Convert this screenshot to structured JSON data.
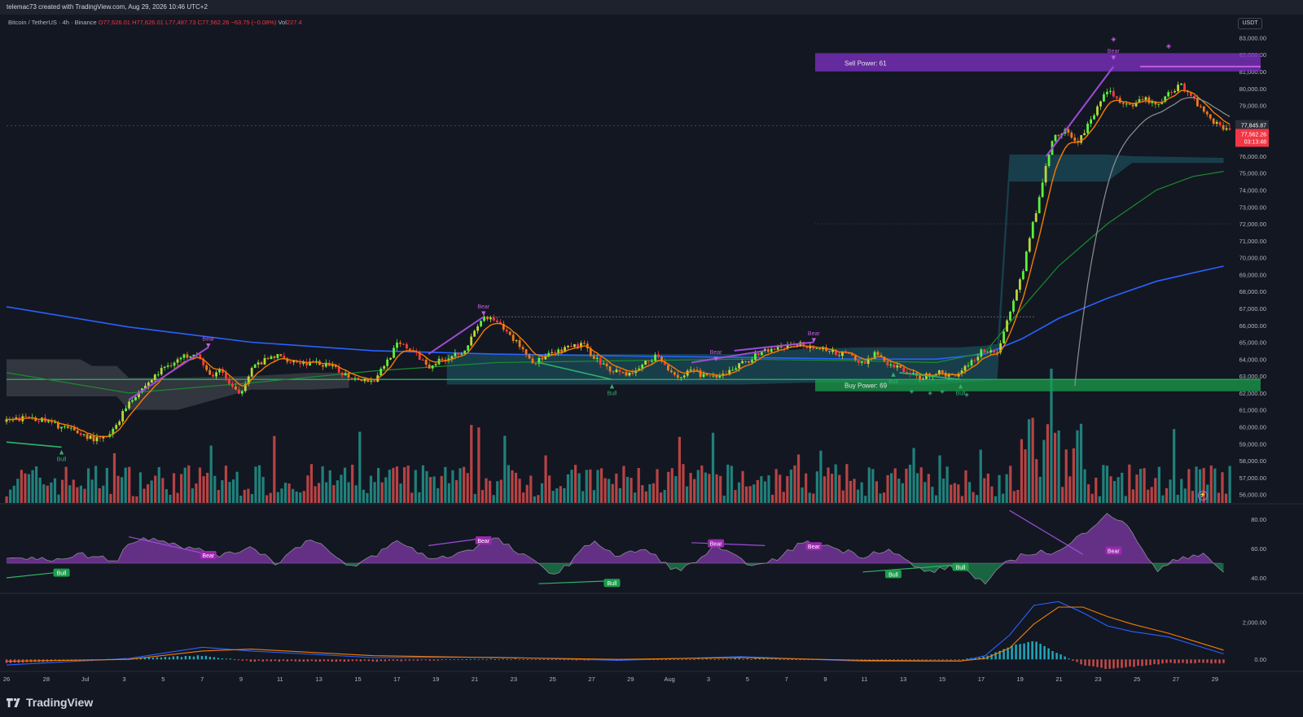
{
  "header": {
    "credit": "telemac73 created with TradingView.com, Aug 29, 2026 10:46 UTC+2"
  },
  "legend": {
    "symbol": "Bitcoin / TetherUS · 4h · Binance",
    "open": "O77,626.01",
    "high": "H77,626.01",
    "low": "L77,487.73",
    "close": "C77,562.26",
    "change": "−63.75 (−0.08%)",
    "volume_label": "Vol",
    "volume_value": "227.4"
  },
  "currency_button": "USDT",
  "brand": {
    "name": "TradingView"
  },
  "colors": {
    "background": "#131722",
    "bull": "#26a69a",
    "bear": "#ef5350",
    "bull_candle_bright": "#5cf23c",
    "bull_candle_mid": "#b9d83a",
    "bear_candle": "#f07a1b",
    "ema_fast": "#f57c00",
    "ema_mid": "#8f9191",
    "sma_green": "#1b8a2f",
    "sma_blue": "#2962ff",
    "cloud": "#1d5e6e",
    "cloud_gray": "#3b3e47",
    "zone_sell": "#7b2fbe",
    "zone_buy": "#1b9e4b",
    "osc_purple": "#a846d8",
    "osc_green": "#1fa65c",
    "macd_line": "#2962ff",
    "signal_line": "#f57c00"
  },
  "markers": {
    "sell_zone_label": "Sell Power: 61",
    "buy_zone_label": "Buy Power: 69",
    "bear": "Bear",
    "bull": "Bull"
  },
  "price_labels": {
    "last_price": "77,845.87",
    "current_price": "77,562.26",
    "countdown": "03:13:48"
  },
  "chart_data": [
    {
      "type": "candlestick",
      "title": "Bitcoin / TetherUS · 4h · Binance",
      "ylim": [
        55500,
        83500
      ],
      "y_ticks": [
        "83,000.00",
        "82,000.00",
        "81,000.00",
        "80,000.00",
        "79,000.00",
        "78,000.00",
        "77,000.00",
        "76,000.00",
        "75,000.00",
        "74,000.00",
        "73,000.00",
        "72,000.00",
        "71,000.00",
        "70,000.00",
        "69,000.00",
        "68,000.00",
        "67,000.00",
        "66,000.00",
        "65,000.00",
        "64,000.00",
        "63,000.00",
        "62,000.00",
        "61,000.00",
        "60,000.00",
        "59,000.00",
        "58,000.00",
        "57,000.00",
        "56,000.00"
      ],
      "x_ticks": [
        "26",
        "28",
        "Jul",
        "3",
        "5",
        "7",
        "9",
        "11",
        "13",
        "15",
        "17",
        "19",
        "21",
        "23",
        "25",
        "27",
        "29",
        "Aug",
        "3",
        "5",
        "7",
        "9",
        "11",
        "13",
        "15",
        "17",
        "19",
        "21",
        "23",
        "25",
        "27",
        "29"
      ],
      "x_date_range": [
        "Jun 26",
        "Aug 29"
      ],
      "price_path_x_frac": [
        0,
        0.02,
        0.045,
        0.075,
        0.085,
        0.1,
        0.13,
        0.155,
        0.165,
        0.175,
        0.19,
        0.2,
        0.22,
        0.24,
        0.26,
        0.28,
        0.3,
        0.32,
        0.33,
        0.345,
        0.36,
        0.375,
        0.39,
        0.4,
        0.42,
        0.43,
        0.45,
        0.47,
        0.49,
        0.51,
        0.53,
        0.55,
        0.56,
        0.58,
        0.6,
        0.62,
        0.65,
        0.67,
        0.69,
        0.7,
        0.71,
        0.72,
        0.73,
        0.745,
        0.76,
        0.775,
        0.79,
        0.8,
        0.81,
        0.83,
        0.85,
        0.855,
        0.865,
        0.875,
        0.885,
        0.9,
        0.91,
        0.92,
        0.93,
        0.94,
        0.95,
        0.96,
        0.97,
        0.985,
        0.995
      ],
      "price_path": [
        60300,
        60600,
        60000,
        59200,
        59500,
        61500,
        63600,
        64500,
        63000,
        63300,
        61800,
        63500,
        64200,
        63800,
        63700,
        63000,
        62700,
        64900,
        64600,
        63600,
        64100,
        64600,
        66500,
        66200,
        64800,
        63800,
        64400,
        64900,
        63500,
        63100,
        64200,
        62900,
        63300,
        62800,
        63700,
        64500,
        64900,
        64500,
        64200,
        63700,
        64400,
        63600,
        63500,
        62900,
        63200,
        63000,
        64000,
        64600,
        64400,
        69000,
        75500,
        77000,
        77500,
        76800,
        77900,
        80000,
        79200,
        78800,
        79500,
        78900,
        79700,
        80300,
        79400,
        78200,
        77600
      ],
      "sell_power": 61,
      "buy_power": 69,
      "sell_zone": [
        81200,
        81800
      ],
      "buy_zone": [
        62100,
        62800
      ],
      "ema_fast_note": "follows price",
      "cloud_upper": [
        64300,
        64300,
        64300,
        64300,
        64300,
        64300,
        64600,
        64700,
        64700,
        64700,
        64700,
        64700,
        64800,
        64900,
        76100,
        76100,
        76000,
        75900
      ],
      "cloud_lower": [
        62500,
        62500,
        62500,
        62500,
        62500,
        62500,
        62600,
        62600,
        62500,
        62500,
        62500,
        62600,
        62700,
        62800,
        74500,
        74500,
        75600,
        75600
      ],
      "cloud_x_frac": [
        0.36,
        0.4,
        0.45,
        0.5,
        0.55,
        0.6,
        0.65,
        0.7,
        0.72,
        0.74,
        0.76,
        0.78,
        0.8,
        0.81,
        0.82,
        0.9,
        0.92,
        0.995
      ],
      "sma_blue_x_frac": [
        0,
        0.1,
        0.2,
        0.3,
        0.4,
        0.5,
        0.6,
        0.7,
        0.76,
        0.8,
        0.83,
        0.86,
        0.9,
        0.94,
        0.97,
        0.995
      ],
      "sma_blue": [
        67100,
        65900,
        65000,
        64500,
        64300,
        64200,
        64100,
        64000,
        64000,
        64300,
        65200,
        66400,
        67600,
        68600,
        69100,
        69500
      ],
      "sma_green_x_frac": [
        0,
        0.1,
        0.2,
        0.3,
        0.4,
        0.5,
        0.6,
        0.7,
        0.76,
        0.8,
        0.83,
        0.86,
        0.9,
        0.94,
        0.97,
        0.995
      ],
      "sma_green": [
        63200,
        62000,
        62600,
        63300,
        63800,
        63900,
        64000,
        63900,
        63800,
        64400,
        67000,
        69500,
        72000,
        74000,
        74800,
        75100
      ]
    },
    {
      "type": "bar",
      "title": "Volume",
      "note": "volume histogram under price panel, green/red per candle"
    },
    {
      "type": "area",
      "title": "RSI oscillator",
      "ylim": [
        30,
        90
      ],
      "y_ticks": [
        "80.00",
        "60.00",
        "40.00"
      ],
      "midline": 50,
      "x_frac": [
        0,
        0.03,
        0.06,
        0.09,
        0.1,
        0.12,
        0.15,
        0.18,
        0.2,
        0.22,
        0.25,
        0.28,
        0.3,
        0.32,
        0.35,
        0.38,
        0.4,
        0.42,
        0.45,
        0.48,
        0.5,
        0.52,
        0.55,
        0.58,
        0.6,
        0.62,
        0.65,
        0.67,
        0.7,
        0.72,
        0.75,
        0.78,
        0.8,
        0.82,
        0.84,
        0.86,
        0.88,
        0.9,
        0.92,
        0.94,
        0.96,
        0.98,
        0.995
      ],
      "values": [
        55,
        52,
        56,
        52,
        64,
        68,
        60,
        55,
        62,
        50,
        68,
        46,
        55,
        65,
        52,
        60,
        67,
        56,
        42,
        66,
        54,
        60,
        44,
        61,
        52,
        48,
        64,
        62,
        55,
        60,
        44,
        48,
        36,
        52,
        58,
        57,
        70,
        85,
        72,
        44,
        54,
        57,
        42
      ]
    },
    {
      "type": "line",
      "title": "MACD",
      "ylim": [
        -600,
        3500
      ],
      "y_ticks": [
        "2,000.00",
        "0.00"
      ],
      "series": [
        {
          "name": "",
          "x_frac": [
            0,
            0.1,
            0.16,
            0.2,
            0.3,
            0.4,
            0.5,
            0.6,
            0.7,
            0.78,
            0.8,
            0.82,
            0.84,
            0.86,
            0.88,
            0.9,
            0.92,
            0.95,
            0.97,
            0.995
          ],
          "values": [
            -300,
            50,
            650,
            450,
            100,
            120,
            -50,
            150,
            -100,
            -100,
            200,
            1300,
            2900,
            3100,
            2500,
            1800,
            1500,
            1200,
            800,
            300
          ]
        },
        {
          "name": "",
          "x_frac": [
            0,
            0.1,
            0.16,
            0.2,
            0.3,
            0.4,
            0.5,
            0.6,
            0.7,
            0.78,
            0.8,
            0.82,
            0.84,
            0.86,
            0.88,
            0.9,
            0.92,
            0.95,
            0.97,
            0.995
          ],
          "values": [
            -100,
            0,
            450,
            550,
            200,
            100,
            0,
            100,
            -50,
            -80,
            50,
            600,
            1900,
            2800,
            2800,
            2300,
            1900,
            1400,
            1000,
            500
          ]
        }
      ]
    }
  ]
}
